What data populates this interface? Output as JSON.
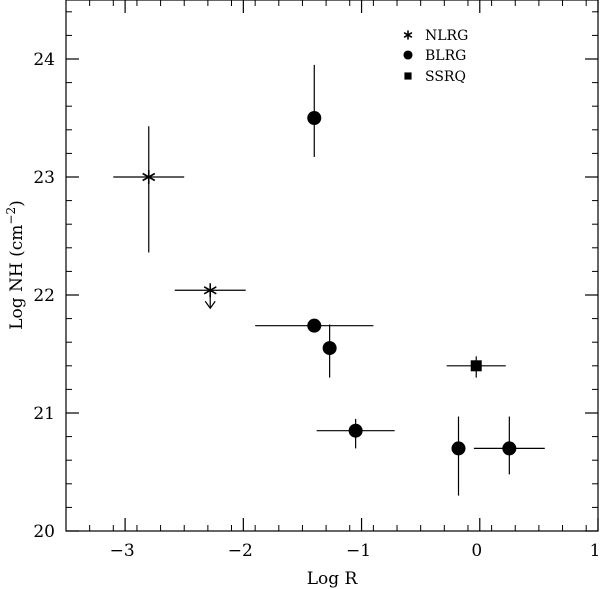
{
  "chart_data": {
    "type": "scatter",
    "title": "",
    "xlabel": "Log R",
    "ylabel": "Log NH (cm",
    "ylabel_unit_exponent": "−2",
    "ylabel_close": ")",
    "xlim": [
      -3.5,
      1
    ],
    "ylim": [
      20,
      24.5
    ],
    "x_ticks": [
      -3,
      -2,
      -1,
      0,
      1
    ],
    "x_tick_labels": [
      "−3",
      "−2",
      "−1",
      "0",
      "1"
    ],
    "y_ticks": [
      20,
      21,
      22,
      23,
      24
    ],
    "y_tick_labels": [
      "20",
      "21",
      "22",
      "23",
      "24"
    ],
    "x_minor_step": 0.2,
    "y_minor_step": 0.2,
    "grid": false,
    "legend_position": "top-right",
    "series": [
      {
        "name": "NLRG",
        "marker": "asterisk",
        "points": [
          {
            "x": -2.8,
            "y": 23.0,
            "xerr": [
              0.3,
              0.3
            ],
            "yerr": [
              0.64,
              0.43
            ]
          },
          {
            "x": -2.28,
            "y": 22.04,
            "xerr": [
              0.3,
              0.3
            ],
            "yerr": [
              0,
              0
            ],
            "upper_limit": true
          }
        ]
      },
      {
        "name": "BLRG",
        "marker": "circle",
        "points": [
          {
            "x": -1.4,
            "y": 23.5,
            "xerr": [
              0,
              0
            ],
            "yerr": [
              0.33,
              0.45
            ]
          },
          {
            "x": -1.4,
            "y": 21.74,
            "xerr": [
              0.5,
              0.5
            ],
            "yerr": [
              0,
              0.03
            ]
          },
          {
            "x": -1.27,
            "y": 21.55,
            "xerr": [
              0,
              0
            ],
            "yerr": [
              0.25,
              0.2
            ]
          },
          {
            "x": -1.05,
            "y": 20.85,
            "xerr": [
              0.33,
              0.33
            ],
            "yerr": [
              0.15,
              0.1
            ]
          },
          {
            "x": -0.18,
            "y": 20.7,
            "xerr": [
              0,
              0
            ],
            "yerr": [
              0.4,
              0.27
            ]
          },
          {
            "x": 0.25,
            "y": 20.7,
            "xerr": [
              0.3,
              0.3
            ],
            "yerr": [
              0.22,
              0.27
            ]
          }
        ]
      },
      {
        "name": "SSRQ",
        "marker": "square",
        "points": [
          {
            "x": -0.03,
            "y": 21.4,
            "xerr": [
              0.25,
              0.25
            ],
            "yerr": [
              0.1,
              0.08
            ]
          }
        ]
      }
    ]
  }
}
